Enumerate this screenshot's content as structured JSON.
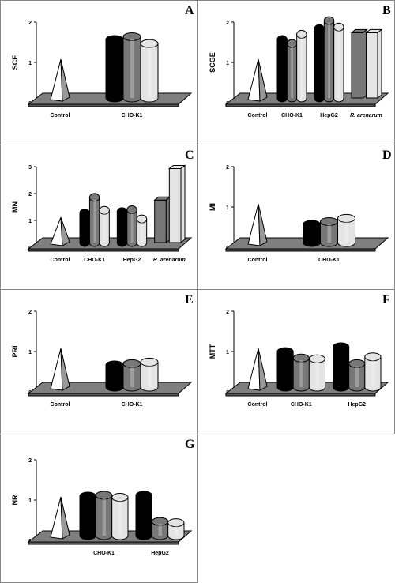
{
  "colors": {
    "black": "#000000",
    "dark_gray": "#777777",
    "light_gray": "#e4e4e4",
    "white": "#ffffff",
    "floor": "#7f7f7f",
    "border": "#888888"
  },
  "chart_data": [
    {
      "panel": "A",
      "type": "bar",
      "ylabel": "SCE",
      "ylim": [
        0,
        2
      ],
      "ticks": [
        "0",
        "1",
        "2"
      ],
      "shape": "cylinder",
      "groups": [
        {
          "name": "Control",
          "values": [
            1.0
          ],
          "control": true
        },
        {
          "name": "CHO-K1",
          "values": [
            1.45,
            1.52,
            1.35
          ]
        }
      ]
    },
    {
      "panel": "B",
      "type": "bar",
      "ylabel": "SCGE",
      "ylim": [
        0,
        2
      ],
      "ticks": [
        "0",
        "1",
        "2"
      ],
      "shape": "cylinder",
      "groups": [
        {
          "name": "Control",
          "values": [
            1.0
          ],
          "control": true
        },
        {
          "name": "CHO-K1",
          "values": [
            1.45,
            1.35,
            1.58
          ]
        },
        {
          "name": "HepG2",
          "values": [
            1.72,
            1.92,
            1.76
          ]
        },
        {
          "name": "R. arenarum",
          "values": [
            1.62,
            1.62
          ],
          "italic": true,
          "shape": "box"
        }
      ]
    },
    {
      "panel": "C",
      "type": "bar",
      "ylabel": "MN",
      "ylim": [
        0,
        3
      ],
      "ticks": [
        "0",
        "1",
        "2",
        "3"
      ],
      "shape": "cylinder",
      "groups": [
        {
          "name": "Control",
          "values": [
            1.0
          ],
          "control": true
        },
        {
          "name": "CHO-K1",
          "values": [
            1.1,
            1.68,
            1.2
          ]
        },
        {
          "name": "HepG2",
          "values": [
            1.15,
            1.22,
            0.88
          ]
        },
        {
          "name": "R. arenarum",
          "values": [
            1.58,
            2.75
          ],
          "italic": true,
          "shape": "box"
        }
      ]
    },
    {
      "panel": "D",
      "type": "bar",
      "ylabel": "MI",
      "ylim": [
        0,
        2
      ],
      "ticks": [
        "0",
        "1",
        "2"
      ],
      "shape": "cylinder",
      "groups": [
        {
          "name": "Control",
          "values": [
            1.0
          ],
          "control": true
        },
        {
          "name": "CHO-K1",
          "values": [
            0.45,
            0.52,
            0.6
          ]
        }
      ]
    },
    {
      "panel": "E",
      "type": "bar",
      "ylabel": "PRI",
      "ylim": [
        0,
        2
      ],
      "ticks": [
        "0",
        "1",
        "2"
      ],
      "shape": "cylinder",
      "groups": [
        {
          "name": "Control",
          "values": [
            1.0
          ],
          "control": true
        },
        {
          "name": "CHO-K1",
          "values": [
            0.55,
            0.58,
            0.62
          ]
        }
      ]
    },
    {
      "panel": "F",
      "type": "bar",
      "ylabel": "MTT",
      "ylim": [
        0,
        2
      ],
      "ticks": [
        "0",
        "1",
        "2"
      ],
      "shape": "cylinder",
      "groups": [
        {
          "name": "Control",
          "values": [
            1.0
          ],
          "control": true
        },
        {
          "name": "CHO-K1",
          "values": [
            0.88,
            0.72,
            0.7
          ]
        },
        {
          "name": "HepG2",
          "values": [
            1.0,
            0.58,
            0.75
          ]
        }
      ]
    },
    {
      "panel": "G",
      "type": "bar",
      "ylabel": "NR",
      "ylim": [
        0,
        2
      ],
      "ticks": [
        "0",
        "1",
        "2"
      ],
      "shape": "cylinder",
      "groups": [
        {
          "name": "",
          "values": [
            1.0
          ],
          "control": true
        },
        {
          "name": "CHO-K1",
          "values": [
            0.98,
            1.0,
            0.95
          ]
        },
        {
          "name": "HepG2",
          "values": [
            1.0,
            0.35,
            0.32
          ]
        }
      ]
    }
  ]
}
